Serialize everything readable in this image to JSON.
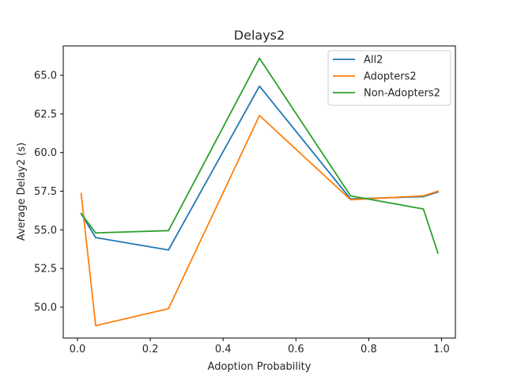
{
  "chart_data": {
    "type": "line",
    "title": "Delays2",
    "xlabel": "Adoption Probability",
    "ylabel": "Average Delay2 (s)",
    "xlim": [
      -0.039,
      1.038
    ],
    "ylim": [
      48.0,
      66.9
    ],
    "xticks": [
      0.0,
      0.2,
      0.4,
      0.6,
      0.8,
      1.0
    ],
    "xtick_labels": [
      "0.0",
      "0.2",
      "0.4",
      "0.6",
      "0.8",
      "1.0"
    ],
    "yticks": [
      50.0,
      52.5,
      55.0,
      57.5,
      60.0,
      62.5,
      65.0
    ],
    "ytick_labels": [
      "50.0",
      "52.5",
      "55.0",
      "57.5",
      "60.0",
      "62.5",
      "65.0"
    ],
    "grid": false,
    "legend_position": "top-right",
    "series": [
      {
        "name": "All2",
        "color": "#1f77b4",
        "x": [
          0.01,
          0.05,
          0.25,
          0.5,
          0.75,
          0.95,
          0.99
        ],
        "values": [
          56.05,
          54.5,
          53.7,
          64.3,
          57.0,
          57.15,
          57.45
        ]
      },
      {
        "name": "Adopters2",
        "color": "#ff7f0e",
        "x": [
          0.01,
          0.05,
          0.25,
          0.5,
          0.75,
          0.95,
          0.99
        ],
        "values": [
          57.35,
          48.8,
          49.9,
          62.4,
          56.95,
          57.2,
          57.5
        ]
      },
      {
        "name": "Non-Adopters2",
        "color": "#2ca02c",
        "x": [
          0.01,
          0.05,
          0.25,
          0.5,
          0.75,
          0.95,
          0.99
        ],
        "values": [
          56.05,
          54.8,
          54.95,
          66.1,
          57.2,
          56.35,
          53.5
        ]
      }
    ]
  }
}
